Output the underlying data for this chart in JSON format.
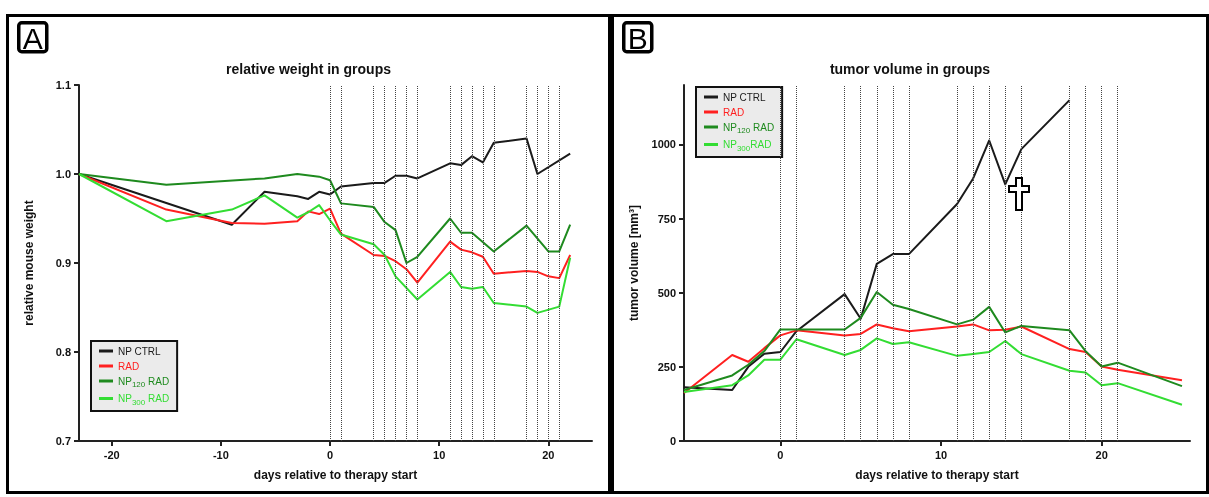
{
  "chart_data": [
    {
      "type": "line",
      "title": "relative weight in groups",
      "xlabel": "days relative to therapy start",
      "ylabel": "relative mouse weight",
      "annotations": [
        "A"
      ],
      "xlim": [
        -23,
        24
      ],
      "xticks": [
        -20,
        -10,
        0,
        10,
        20
      ],
      "ylim": [
        0.7,
        1.1
      ],
      "yticks": [
        0.7,
        0.8,
        0.9,
        {
          "value": 1,
          "label": "1.0"
        },
        1.1
      ],
      "grid": false,
      "legend": "bottom left",
      "marker": "none",
      "line_style": "solid",
      "series": [
        {
          "name": "NP CTRL",
          "color": "#1a1a1a",
          "x": [
            -23,
            -9,
            -6,
            -3,
            -2,
            -1,
            0,
            1,
            4,
            5,
            6,
            7,
            8,
            11,
            12,
            13,
            14,
            15,
            18,
            19,
            22
          ],
          "values": [
            1.0,
            0.943,
            0.98,
            0.975,
            0.972,
            0.98,
            0.977,
            0.986,
            0.99,
            0.99,
            0.998,
            0.998,
            0.995,
            1.012,
            1.01,
            1.02,
            1.013,
            1.035,
            1.04,
            1.0,
            1.023
          ]
        },
        {
          "name": "RAD",
          "color": "#ff2020",
          "x": [
            -23,
            -15,
            -9,
            -6,
            -3,
            -2,
            -1,
            0,
            1,
            4,
            5,
            6,
            7,
            8,
            11,
            12,
            13,
            14,
            15,
            18,
            19,
            20,
            21,
            22
          ],
          "values": [
            1.0,
            0.96,
            0.945,
            0.944,
            0.947,
            0.958,
            0.955,
            0.961,
            0.933,
            0.909,
            0.908,
            0.902,
            0.893,
            0.878,
            0.924,
            0.915,
            0.912,
            0.907,
            0.888,
            0.891,
            0.89,
            0.885,
            0.883,
            0.909
          ]
        },
        {
          "name": "NP$_{120}$ RAD",
          "color": "#1e8a1e",
          "x": [
            -23,
            -15,
            -6,
            -3,
            -1,
            0,
            1,
            4,
            5,
            6,
            7,
            8,
            11,
            12,
            13,
            15,
            18,
            20,
            21,
            22
          ],
          "values": [
            1.0,
            0.988,
            0.995,
            1.0,
            0.997,
            0.993,
            0.967,
            0.963,
            0.946,
            0.937,
            0.9,
            0.907,
            0.95,
            0.934,
            0.934,
            0.913,
            0.942,
            0.913,
            0.913,
            0.943
          ]
        },
        {
          "name": "NP$_{300}$ RAD",
          "color": "#33dd33",
          "x": [
            -23,
            -15,
            -9,
            -6,
            -3,
            -2,
            -1,
            0,
            1,
            4,
            5,
            6,
            8,
            11,
            12,
            13,
            14,
            15,
            18,
            19,
            21,
            22
          ],
          "values": [
            1.0,
            0.947,
            0.96,
            0.976,
            0.951,
            0.957,
            0.965,
            0.948,
            0.932,
            0.921,
            0.909,
            0.885,
            0.859,
            0.89,
            0.873,
            0.871,
            0.873,
            0.855,
            0.851,
            0.844,
            0.851,
            0.906
          ]
        }
      ],
      "ref_lines": [
        {
          "axis": "x",
          "value": 0,
          "line_style": "dotted"
        },
        {
          "axis": "x",
          "value": 1,
          "line_style": "dotted"
        },
        {
          "axis": "x",
          "value": 4,
          "line_style": "dotted"
        },
        {
          "axis": "x",
          "value": 5,
          "line_style": "dotted"
        },
        {
          "axis": "x",
          "value": 6,
          "line_style": "dotted"
        },
        {
          "axis": "x",
          "value": 7,
          "line_style": "dotted"
        },
        {
          "axis": "x",
          "value": 8,
          "line_style": "dotted"
        },
        {
          "axis": "x",
          "value": 11,
          "line_style": "dotted"
        },
        {
          "axis": "x",
          "value": 12,
          "line_style": "dotted"
        },
        {
          "axis": "x",
          "value": 13,
          "line_style": "dotted"
        },
        {
          "axis": "x",
          "value": 14,
          "line_style": "dotted"
        },
        {
          "axis": "x",
          "value": 15,
          "line_style": "dotted"
        },
        {
          "axis": "x",
          "value": 18,
          "line_style": "dotted"
        },
        {
          "axis": "x",
          "value": 19,
          "line_style": "dotted"
        },
        {
          "axis": "x",
          "value": 20,
          "line_style": "dotted"
        },
        {
          "axis": "x",
          "value": 21,
          "line_style": "dotted"
        }
      ]
    },
    {
      "type": "line",
      "title": "tumor volume in groups",
      "xlabel": "days relative to therapy start",
      "ylabel": "tumor volume [mm³]",
      "annotations": [
        "B"
      ],
      "xlim": [
        -6,
        25.5
      ],
      "xticks": [
        0,
        10,
        20
      ],
      "ylim": [
        0,
        1200
      ],
      "yticks": [
        0,
        250,
        500,
        750,
        1000
      ],
      "grid": false,
      "legend": "top left",
      "marker": "none",
      "line_style": "solid",
      "series": [
        {
          "name": "NP CTRL",
          "color": "#1a1a1a",
          "x": [
            -6,
            -3,
            -2,
            -1,
            0,
            1,
            4,
            5,
            6,
            7,
            8,
            11,
            12,
            13,
            14,
            15,
            18
          ],
          "values": [
            181,
            172,
            250,
            294,
            300,
            370,
            495,
            412,
            597,
            630,
            630,
            799,
            885,
            1013,
            865,
            984,
            1149
          ]
        },
        {
          "name": "RAD",
          "color": "#ff2020",
          "x": [
            -6,
            -3,
            -2,
            -1,
            0,
            1,
            4,
            5,
            6,
            7,
            8,
            11,
            12,
            13,
            14,
            15,
            18,
            19,
            20,
            21,
            25
          ],
          "values": [
            162,
            290,
            267,
            313,
            356,
            373,
            356,
            361,
            393,
            380,
            370,
            386,
            393,
            373,
            375,
            386,
            310,
            300,
            251,
            240,
            205
          ]
        },
        {
          "name": "NP$_{120}$ RAD",
          "color": "#1e8a1e",
          "x": [
            -6,
            -3,
            -2,
            -1,
            0,
            1,
            4,
            5,
            6,
            7,
            8,
            11,
            12,
            13,
            14,
            15,
            18,
            19,
            20,
            21,
            25
          ],
          "values": [
            172,
            221,
            257,
            303,
            376,
            376,
            376,
            415,
            502,
            459,
            445,
            393,
            409,
            452,
            366,
            388,
            373,
            303,
            251,
            264,
            185
          ]
        },
        {
          "name": "NP$_{300}$RAD",
          "color": "#33dd33",
          "x": [
            -6,
            -3,
            -2,
            -1,
            0,
            1,
            4,
            5,
            6,
            7,
            8,
            11,
            12,
            13,
            14,
            15,
            18,
            19,
            20,
            21,
            25
          ],
          "values": [
            165,
            188,
            221,
            274,
            274,
            343,
            290,
            307,
            346,
            327,
            333,
            287,
            293,
            300,
            337,
            293,
            237,
            231,
            188,
            195,
            122
          ]
        }
      ],
      "ref_lines": [
        {
          "axis": "x",
          "value": 0,
          "line_style": "dotted"
        },
        {
          "axis": "x",
          "value": 1,
          "line_style": "dotted"
        },
        {
          "axis": "x",
          "value": 4,
          "line_style": "dotted"
        },
        {
          "axis": "x",
          "value": 5,
          "line_style": "dotted"
        },
        {
          "axis": "x",
          "value": 6,
          "line_style": "dotted"
        },
        {
          "axis": "x",
          "value": 7,
          "line_style": "dotted"
        },
        {
          "axis": "x",
          "value": 8,
          "line_style": "dotted"
        },
        {
          "axis": "x",
          "value": 11,
          "line_style": "dotted"
        },
        {
          "axis": "x",
          "value": 12,
          "line_style": "dotted"
        },
        {
          "axis": "x",
          "value": 13,
          "line_style": "dotted"
        },
        {
          "axis": "x",
          "value": 14,
          "line_style": "dotted"
        },
        {
          "axis": "x",
          "value": 15,
          "line_style": "dotted"
        },
        {
          "axis": "x",
          "value": 18,
          "line_style": "dotted"
        },
        {
          "axis": "x",
          "value": 19,
          "line_style": "dotted"
        },
        {
          "axis": "x",
          "value": 20,
          "line_style": "dotted"
        },
        {
          "axis": "x",
          "value": 21,
          "line_style": "dotted"
        }
      ]
    }
  ]
}
